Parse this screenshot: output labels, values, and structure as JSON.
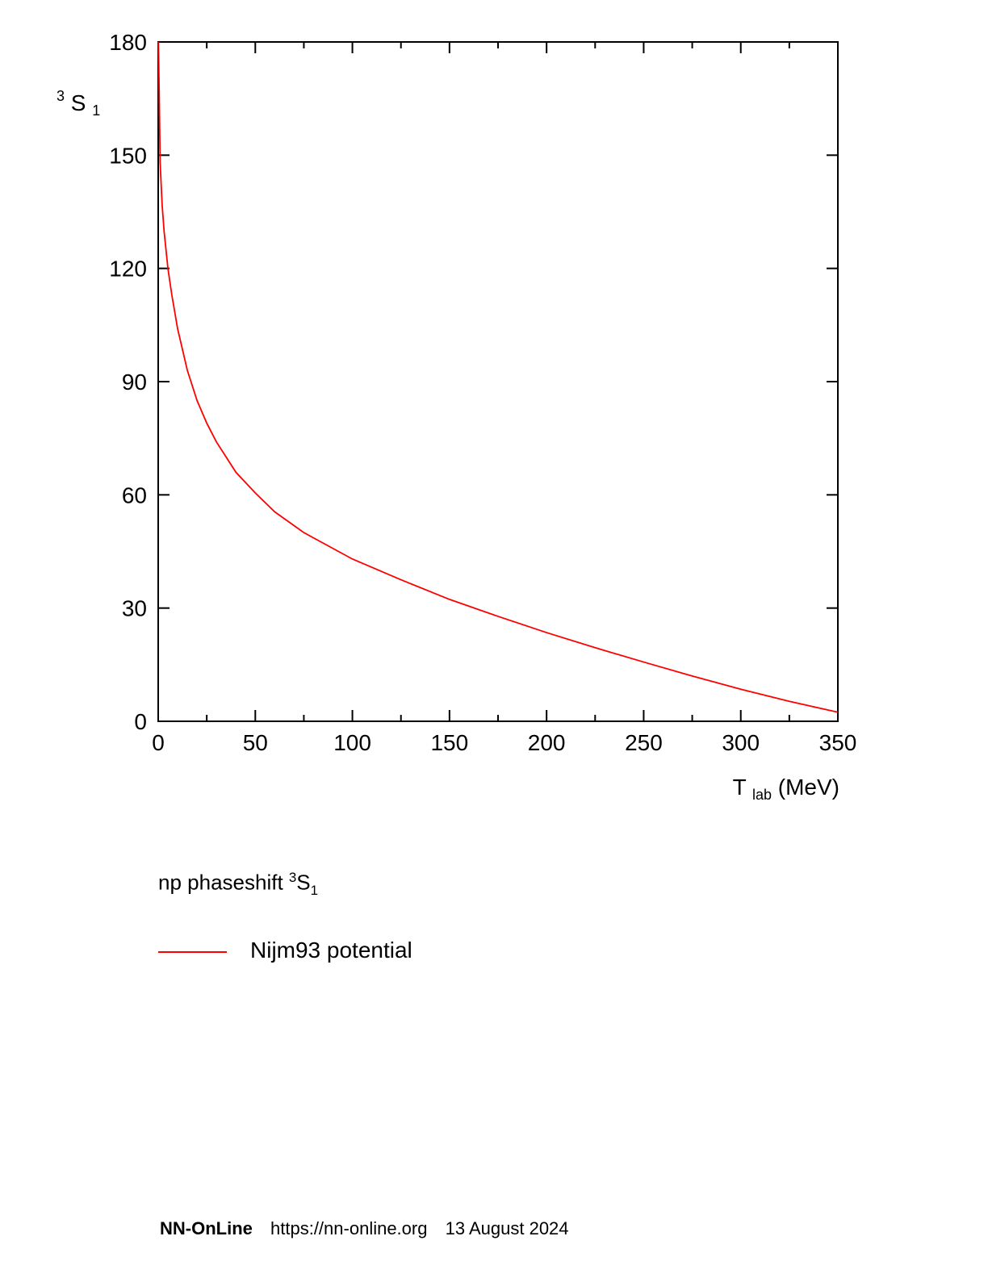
{
  "chart_data": {
    "type": "line",
    "xlabel_main": "T",
    "xlabel_sub": "lab",
    "xlabel_unit": "(MeV)",
    "ylabel_sup": "3",
    "ylabel_main": "S",
    "ylabel_sub": "1",
    "xlim": [
      0,
      350
    ],
    "ylim": [
      0,
      180
    ],
    "xticks": [
      0,
      50,
      100,
      150,
      200,
      250,
      300,
      350
    ],
    "yticks": [
      0,
      30,
      60,
      90,
      120,
      150,
      180
    ],
    "line_color": "#ff0000",
    "series": [
      {
        "name": "Nijm93 potential",
        "x": [
          0.1,
          0.5,
          1,
          2,
          3,
          5,
          7,
          10,
          15,
          20,
          25,
          30,
          40,
          50,
          60,
          75,
          100,
          125,
          150,
          175,
          200,
          225,
          250,
          275,
          300,
          325,
          350
        ],
        "y": [
          180,
          167,
          148,
          137,
          130,
          120,
          113,
          104,
          93,
          85,
          79,
          74,
          66,
          60.5,
          55.5,
          50,
          43,
          37.5,
          32.3,
          27.8,
          23.5,
          19.5,
          15.7,
          12,
          8.5,
          5.3,
          2.4
        ]
      }
    ]
  },
  "caption": {
    "prefix": "np phaseshift ",
    "sup": "3",
    "main": "S",
    "sub": "1"
  },
  "legend": {
    "label": "Nijm93 potential"
  },
  "footer": {
    "brand": "NN-OnLine",
    "url": "https://nn-online.org",
    "date": "13 August 2024"
  }
}
